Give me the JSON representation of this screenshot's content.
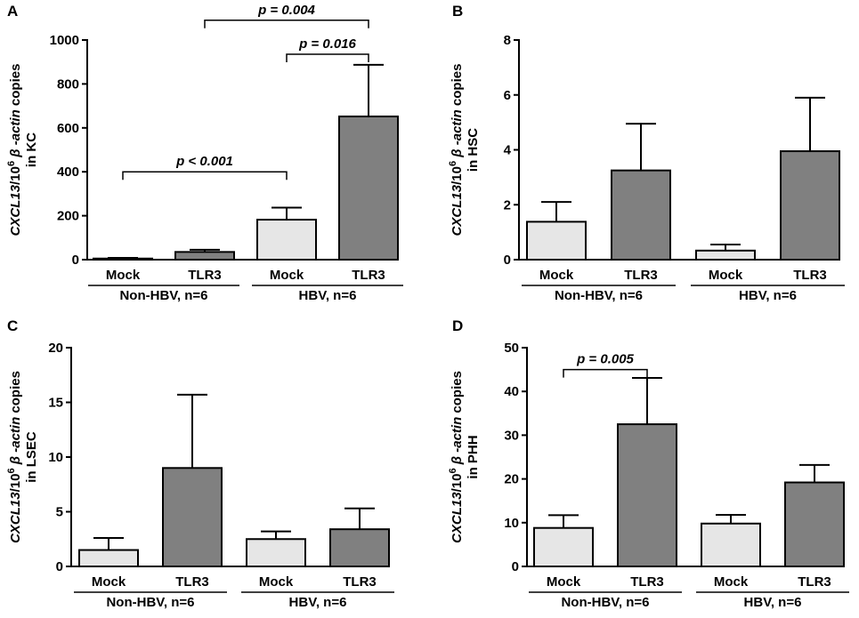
{
  "chart_data": [
    {
      "type": "bar",
      "panel": "A",
      "categories": [
        "Mock",
        "TLR3",
        "Mock",
        "TLR3"
      ],
      "groups": [
        {
          "label": "Non-HBV, n=6",
          "members": [
            0,
            1
          ]
        },
        {
          "label": "HBV, n=6",
          "members": [
            2,
            3
          ]
        }
      ],
      "values": [
        5,
        35,
        182,
        652
      ],
      "errors": [
        3,
        10,
        55,
        235
      ],
      "colors": [
        "#e6e6e6",
        "#808080",
        "#e6e6e6",
        "#808080"
      ],
      "ylim": [
        0,
        1000
      ],
      "yticks": [
        "0",
        "200",
        "400",
        "600",
        "800",
        "1000"
      ],
      "ylabel": {
        "gene": "CXCL13",
        "slash": "/10",
        "exp": "6",
        "ref": " β -actin",
        "tail": " copies",
        "line2": "in KC"
      },
      "annotations": [
        {
          "from": 0,
          "to": 2,
          "text": "p < 0.001",
          "y": 400
        },
        {
          "from": 2,
          "to": 3,
          "text": "p = 0.016",
          "y": 935
        },
        {
          "from": 1,
          "to": 3,
          "text": "p = 0.004",
          "y": 1090
        }
      ]
    },
    {
      "type": "bar",
      "panel": "B",
      "categories": [
        "Mock",
        "TLR3",
        "Mock",
        "TLR3"
      ],
      "groups": [
        {
          "label": "Non-HBV, n=6",
          "members": [
            0,
            1
          ]
        },
        {
          "label": "HBV, n=6",
          "members": [
            2,
            3
          ]
        }
      ],
      "values": [
        1.38,
        3.25,
        0.33,
        3.95
      ],
      "errors": [
        0.72,
        1.7,
        0.22,
        1.95
      ],
      "colors": [
        "#e6e6e6",
        "#808080",
        "#e6e6e6",
        "#808080"
      ],
      "ylim": [
        0,
        8
      ],
      "yticks": [
        "0",
        "2",
        "4",
        "6",
        "8"
      ],
      "ylabel": {
        "gene": "CXCL13",
        "slash": "/10",
        "exp": "6",
        "ref": " β -actin",
        "tail": " copies",
        "line2": "in HSC"
      },
      "annotations": []
    },
    {
      "type": "bar",
      "panel": "C",
      "categories": [
        "Mock",
        "TLR3",
        "Mock",
        "TLR3"
      ],
      "groups": [
        {
          "label": "Non-HBV, n=6",
          "members": [
            0,
            1
          ]
        },
        {
          "label": "HBV, n=6",
          "members": [
            2,
            3
          ]
        }
      ],
      "values": [
        1.5,
        9.0,
        2.5,
        3.4
      ],
      "errors": [
        1.1,
        6.7,
        0.7,
        1.9
      ],
      "colors": [
        "#e6e6e6",
        "#808080",
        "#e6e6e6",
        "#808080"
      ],
      "ylim": [
        0,
        20
      ],
      "yticks": [
        "0",
        "5",
        "10",
        "15",
        "20"
      ],
      "ylabel": {
        "gene": "CXCL13",
        "slash": "/10",
        "exp": "6",
        "ref": " β -actin",
        "tail": " copies",
        "line2": "in LSEC"
      },
      "annotations": []
    },
    {
      "type": "bar",
      "panel": "D",
      "categories": [
        "Mock",
        "TLR3",
        "Mock",
        "TLR3"
      ],
      "groups": [
        {
          "label": "Non-HBV, n=6",
          "members": [
            0,
            1
          ]
        },
        {
          "label": "HBV, n=6",
          "members": [
            2,
            3
          ]
        }
      ],
      "values": [
        8.8,
        32.5,
        9.8,
        19.2
      ],
      "errors": [
        2.9,
        10.6,
        2.0,
        4.0
      ],
      "colors": [
        "#e6e6e6",
        "#808080",
        "#e6e6e6",
        "#808080"
      ],
      "ylim": [
        0,
        50
      ],
      "yticks": [
        "0",
        "10",
        "20",
        "30",
        "40",
        "50"
      ],
      "ylabel": {
        "gene": "CXCL13",
        "slash": "/10",
        "exp": "6",
        "ref": " β -actin",
        "tail": " copies",
        "line2": "in PHH"
      },
      "annotations": [
        {
          "from": 0,
          "to": 1,
          "text": "p = 0.005",
          "y": 45
        }
      ]
    }
  ]
}
